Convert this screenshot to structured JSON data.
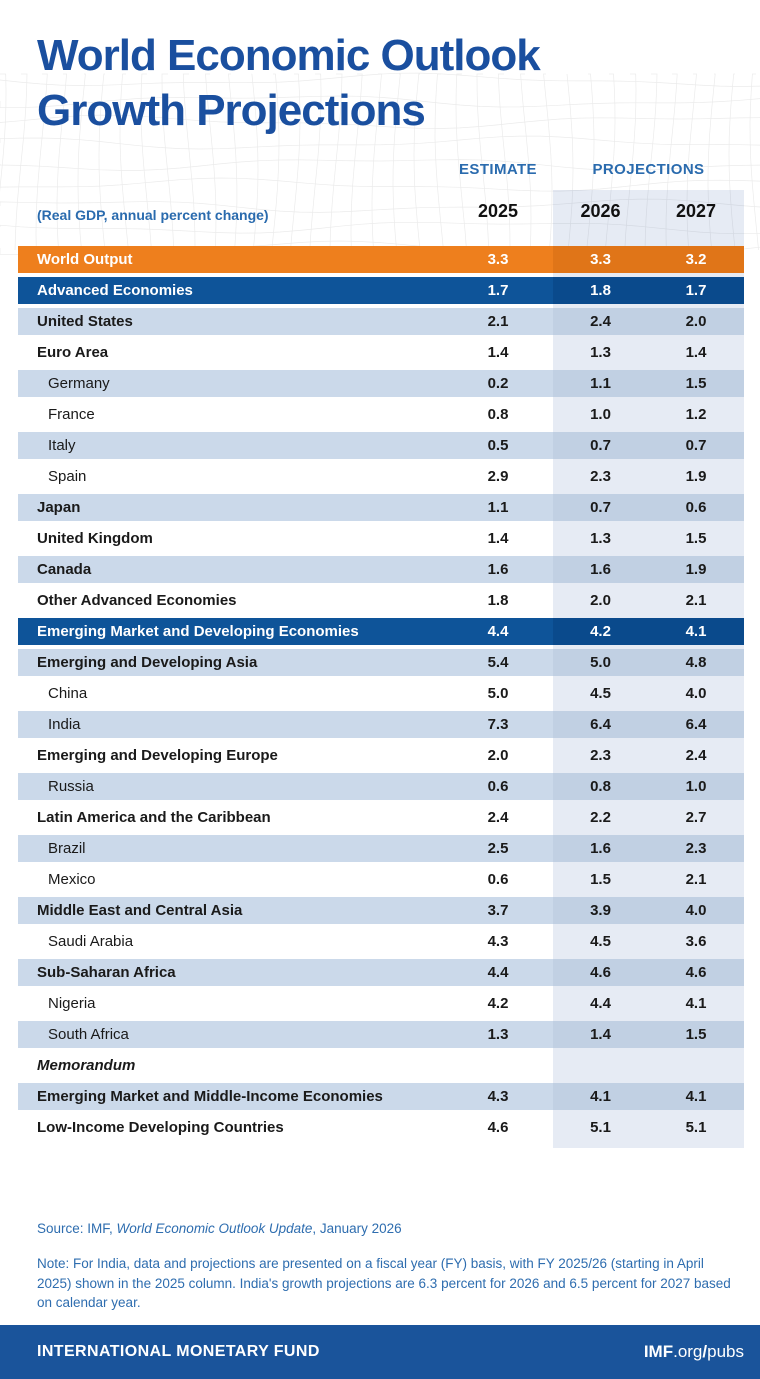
{
  "header": {
    "title_line1": "World Economic Outlook",
    "title_line2": "Growth Projections",
    "estimate_label": "ESTIMATE",
    "projections_label": "PROJECTIONS",
    "subtitle": "(Real GDP, annual percent change)",
    "years": [
      "2025",
      "2026",
      "2027"
    ]
  },
  "colors": {
    "title_blue": "#1A4F9F",
    "heading_blue": "#2A6BAE",
    "world_output_orange": "#EE7F1D",
    "world_output_orange_band": "#E07518",
    "group_navy": "#0E5499",
    "group_navy_band": "#0A4A8C",
    "stripe_light_blue": "#CBD9EA",
    "stripe_light_blue_band": "#C1D0E3",
    "projections_band_tint": "#E2E8F2",
    "footer_bar_blue": "#1A549B",
    "value_text": "#1A1A1A"
  },
  "chart_data": {
    "type": "table",
    "title": "World Economic Outlook Growth Projections",
    "subtitle": "(Real GDP, annual percent change)",
    "column_groups": [
      {
        "label": "ESTIMATE",
        "columns": [
          "2025"
        ]
      },
      {
        "label": "PROJECTIONS",
        "columns": [
          "2026",
          "2027"
        ]
      }
    ],
    "columns": [
      "2025",
      "2026",
      "2027"
    ],
    "rows": [
      {
        "label": "World Output",
        "type": "orange",
        "bold": true,
        "indent": false,
        "italic": false,
        "values": [
          "3.3",
          "3.3",
          "3.2"
        ]
      },
      {
        "label": "Advanced Economies",
        "type": "navy",
        "bold": true,
        "indent": false,
        "italic": false,
        "values": [
          "1.7",
          "1.8",
          "1.7"
        ]
      },
      {
        "label": "United States",
        "type": "light",
        "bold": true,
        "indent": false,
        "italic": false,
        "values": [
          "2.1",
          "2.4",
          "2.0"
        ]
      },
      {
        "label": "Euro Area",
        "type": "white",
        "bold": true,
        "indent": false,
        "italic": false,
        "values": [
          "1.4",
          "1.3",
          "1.4"
        ]
      },
      {
        "label": "Germany",
        "type": "light",
        "bold": false,
        "indent": true,
        "italic": false,
        "values": [
          "0.2",
          "1.1",
          "1.5"
        ]
      },
      {
        "label": "France",
        "type": "white",
        "bold": false,
        "indent": true,
        "italic": false,
        "values": [
          "0.8",
          "1.0",
          "1.2"
        ]
      },
      {
        "label": "Italy",
        "type": "light",
        "bold": false,
        "indent": true,
        "italic": false,
        "values": [
          "0.5",
          "0.7",
          "0.7"
        ]
      },
      {
        "label": "Spain",
        "type": "white",
        "bold": false,
        "indent": true,
        "italic": false,
        "values": [
          "2.9",
          "2.3",
          "1.9"
        ]
      },
      {
        "label": "Japan",
        "type": "light",
        "bold": true,
        "indent": false,
        "italic": false,
        "values": [
          "1.1",
          "0.7",
          "0.6"
        ]
      },
      {
        "label": "United Kingdom",
        "type": "white",
        "bold": true,
        "indent": false,
        "italic": false,
        "values": [
          "1.4",
          "1.3",
          "1.5"
        ]
      },
      {
        "label": "Canada",
        "type": "light",
        "bold": true,
        "indent": false,
        "italic": false,
        "values": [
          "1.6",
          "1.6",
          "1.9"
        ]
      },
      {
        "label": "Other Advanced Economies",
        "type": "white",
        "bold": true,
        "indent": false,
        "italic": false,
        "values": [
          "1.8",
          "2.0",
          "2.1"
        ]
      },
      {
        "label": "Emerging Market and Developing Economies",
        "type": "navy",
        "bold": true,
        "indent": false,
        "italic": false,
        "values": [
          "4.4",
          "4.2",
          "4.1"
        ]
      },
      {
        "label": "Emerging and Developing Asia",
        "type": "light",
        "bold": true,
        "indent": false,
        "italic": false,
        "values": [
          "5.4",
          "5.0",
          "4.8"
        ]
      },
      {
        "label": "China",
        "type": "white",
        "bold": false,
        "indent": true,
        "italic": false,
        "values": [
          "5.0",
          "4.5",
          "4.0"
        ]
      },
      {
        "label": "India",
        "type": "light",
        "bold": false,
        "indent": true,
        "italic": false,
        "values": [
          "7.3",
          "6.4",
          "6.4"
        ]
      },
      {
        "label": "Emerging and Developing Europe",
        "type": "white",
        "bold": true,
        "indent": false,
        "italic": false,
        "values": [
          "2.0",
          "2.3",
          "2.4"
        ]
      },
      {
        "label": "Russia",
        "type": "light",
        "bold": false,
        "indent": true,
        "italic": false,
        "values": [
          "0.6",
          "0.8",
          "1.0"
        ]
      },
      {
        "label": "Latin America and the Caribbean",
        "type": "white",
        "bold": true,
        "indent": false,
        "italic": false,
        "values": [
          "2.4",
          "2.2",
          "2.7"
        ]
      },
      {
        "label": "Brazil",
        "type": "light",
        "bold": false,
        "indent": true,
        "italic": false,
        "values": [
          "2.5",
          "1.6",
          "2.3"
        ]
      },
      {
        "label": "Mexico",
        "type": "white",
        "bold": false,
        "indent": true,
        "italic": false,
        "values": [
          "0.6",
          "1.5",
          "2.1"
        ]
      },
      {
        "label": "Middle East and Central Asia",
        "type": "light",
        "bold": true,
        "indent": false,
        "italic": false,
        "values": [
          "3.7",
          "3.9",
          "4.0"
        ]
      },
      {
        "label": "Saudi Arabia",
        "type": "white",
        "bold": false,
        "indent": true,
        "italic": false,
        "values": [
          "4.3",
          "4.5",
          "3.6"
        ]
      },
      {
        "label": "Sub-Saharan Africa",
        "type": "light",
        "bold": true,
        "indent": false,
        "italic": false,
        "values": [
          "4.4",
          "4.6",
          "4.6"
        ]
      },
      {
        "label": "Nigeria",
        "type": "white",
        "bold": false,
        "indent": true,
        "italic": false,
        "values": [
          "4.2",
          "4.4",
          "4.1"
        ]
      },
      {
        "label": "South Africa",
        "type": "light",
        "bold": false,
        "indent": true,
        "italic": false,
        "values": [
          "1.3",
          "1.4",
          "1.5"
        ]
      },
      {
        "label": "Memorandum",
        "type": "white",
        "bold": true,
        "indent": false,
        "italic": true,
        "values": [
          "",
          "",
          ""
        ]
      },
      {
        "label": "Emerging Market and Middle-Income Economies",
        "type": "light",
        "bold": true,
        "indent": false,
        "italic": false,
        "values": [
          "4.3",
          "4.1",
          "4.1"
        ]
      },
      {
        "label": "Low-Income Developing Countries",
        "type": "white",
        "bold": true,
        "indent": false,
        "italic": false,
        "values": [
          "4.6",
          "5.1",
          "5.1"
        ]
      }
    ]
  },
  "footer": {
    "source_prefix": "Source: IMF, ",
    "source_italic": "World Economic Outlook Update",
    "source_suffix": ", January 2026",
    "note": "Note: For India, data and projections are presented on a fiscal year (FY) basis, with FY 2025/26 (starting in April 2025) shown in the 2025 column. India's growth projections are 6.3 percent for 2026 and 6.5 percent for 2027 based on calendar year.",
    "org_name": "INTERNATIONAL MONETARY FUND",
    "url_bold1": "IMF",
    "url_mid": ".org",
    "url_slash": "/",
    "url_end": "pubs"
  }
}
